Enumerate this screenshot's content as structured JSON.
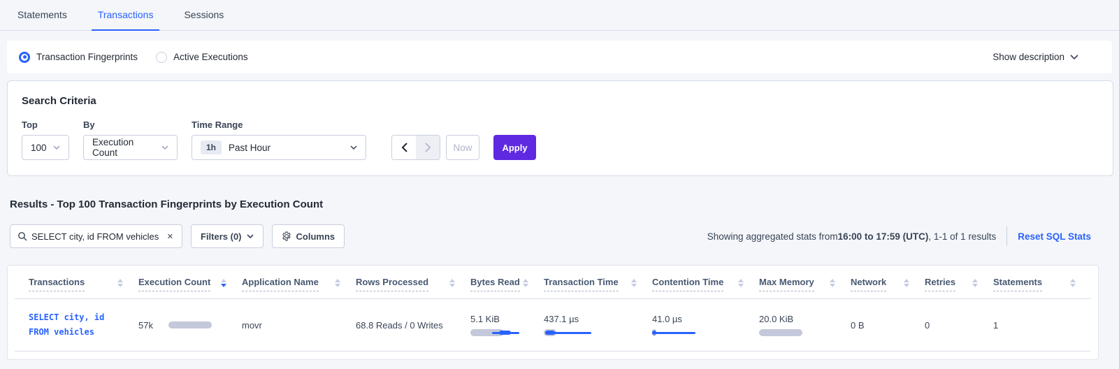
{
  "tabs": [
    {
      "label": "Statements",
      "active": false
    },
    {
      "label": "Transactions",
      "active": true
    },
    {
      "label": "Sessions",
      "active": false
    }
  ],
  "view_toggle": {
    "options": [
      {
        "label": "Transaction Fingerprints",
        "selected": true
      },
      {
        "label": "Active Executions",
        "selected": false
      }
    ],
    "show_description_label": "Show description"
  },
  "search_criteria": {
    "title": "Search Criteria",
    "top": {
      "label": "Top",
      "value": "100"
    },
    "by": {
      "label": "By",
      "value": "Execution Count"
    },
    "time_range": {
      "label": "Time Range",
      "badge": "1h",
      "value": "Past Hour"
    },
    "now_label": "Now",
    "apply_label": "Apply"
  },
  "results": {
    "heading": "Results - Top 100 Transaction Fingerprints by Execution Count",
    "search_value": "SELECT city, id FROM vehicles WHE",
    "filters_label": "Filters (0)",
    "columns_label": "Columns",
    "stats_prefix": "Showing aggregated stats from ",
    "stats_bold": "16:00 to 17:59 (UTC)",
    "stats_suffix": ", 1-1 of 1 results",
    "reset_link": "Reset SQL Stats"
  },
  "table": {
    "columns": [
      {
        "label": "Transactions",
        "sort": "none"
      },
      {
        "label": "Execution Count",
        "sort": "desc"
      },
      {
        "label": "Application Name",
        "sort": "none"
      },
      {
        "label": "Rows Processed",
        "sort": "none"
      },
      {
        "label": "Bytes Read",
        "sort": "none"
      },
      {
        "label": "Transaction Time",
        "sort": "none"
      },
      {
        "label": "Contention Time",
        "sort": "none"
      },
      {
        "label": "Max Memory",
        "sort": "none"
      },
      {
        "label": "Network",
        "sort": "none"
      },
      {
        "label": "Retries",
        "sort": "none"
      },
      {
        "label": "Statements",
        "sort": "none"
      }
    ],
    "row": {
      "transaction_line1": "SELECT city, id",
      "transaction_line2": "FROM vehicles",
      "execution_count": "57k",
      "application_name": "movr",
      "rows_processed": "68.8 Reads / 0 Writes",
      "bytes_read": "5.1 KiB",
      "transaction_time": "437.1 µs",
      "contention_time": "41.0 µs",
      "max_memory": "20.0 KiB",
      "network": "0 B",
      "retries": "0",
      "statements": "1"
    },
    "bars": {
      "execution_count": {
        "gray": [
          0,
          62
        ]
      },
      "bytes_read": {
        "gray": [
          0,
          48
        ],
        "line": [
          31,
          70
        ],
        "thick": [
          41,
          58
        ]
      },
      "transaction_time": {
        "gray": [
          0,
          18
        ],
        "line": [
          2,
          68
        ],
        "thick": [
          2,
          16
        ]
      },
      "contention_time": {
        "gray": [
          0,
          6
        ],
        "line": [
          0,
          62
        ],
        "thick": [
          0,
          6
        ]
      },
      "max_memory": {
        "gray": [
          0,
          62
        ]
      }
    }
  },
  "colors": {
    "accent_blue": "#2962ff",
    "apply_purple": "#5f29e2",
    "bar_gray": "#c3c8da",
    "page_background": "#f4f6fa"
  }
}
